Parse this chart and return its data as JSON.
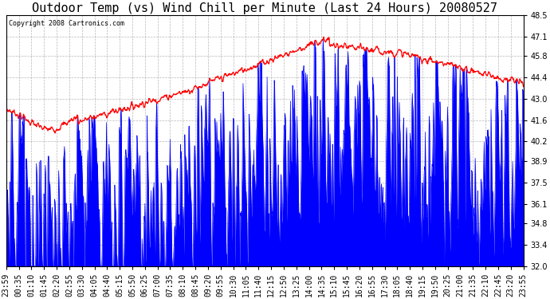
{
  "title": "Outdoor Temp (vs) Wind Chill per Minute (Last 24 Hours) 20080527",
  "copyright_text": "Copyright 2008 Cartronics.com",
  "ylim": [
    32.0,
    48.5
  ],
  "yticks": [
    32.0,
    33.4,
    34.8,
    36.1,
    37.5,
    38.9,
    40.2,
    41.6,
    43.0,
    44.4,
    45.8,
    47.1,
    48.5
  ],
  "x_labels": [
    "23:59",
    "00:35",
    "01:10",
    "01:45",
    "02:20",
    "02:55",
    "03:30",
    "04:05",
    "04:40",
    "05:15",
    "05:50",
    "06:25",
    "07:00",
    "07:35",
    "08:10",
    "08:45",
    "09:20",
    "09:55",
    "10:30",
    "11:05",
    "11:40",
    "12:15",
    "12:50",
    "13:25",
    "14:00",
    "14:35",
    "15:10",
    "15:45",
    "16:20",
    "16:55",
    "17:30",
    "18:05",
    "18:40",
    "19:15",
    "19:50",
    "20:25",
    "21:00",
    "21:35",
    "22:10",
    "22:45",
    "23:20",
    "23:55"
  ],
  "background_color": "#ffffff",
  "plot_bg_color": "#ffffff",
  "grid_color": "#888888",
  "line_color_red": "#ff0000",
  "line_color_blue": "#0000ff",
  "title_fontsize": 11,
  "tick_fontsize": 7,
  "copyright_fontsize": 6
}
